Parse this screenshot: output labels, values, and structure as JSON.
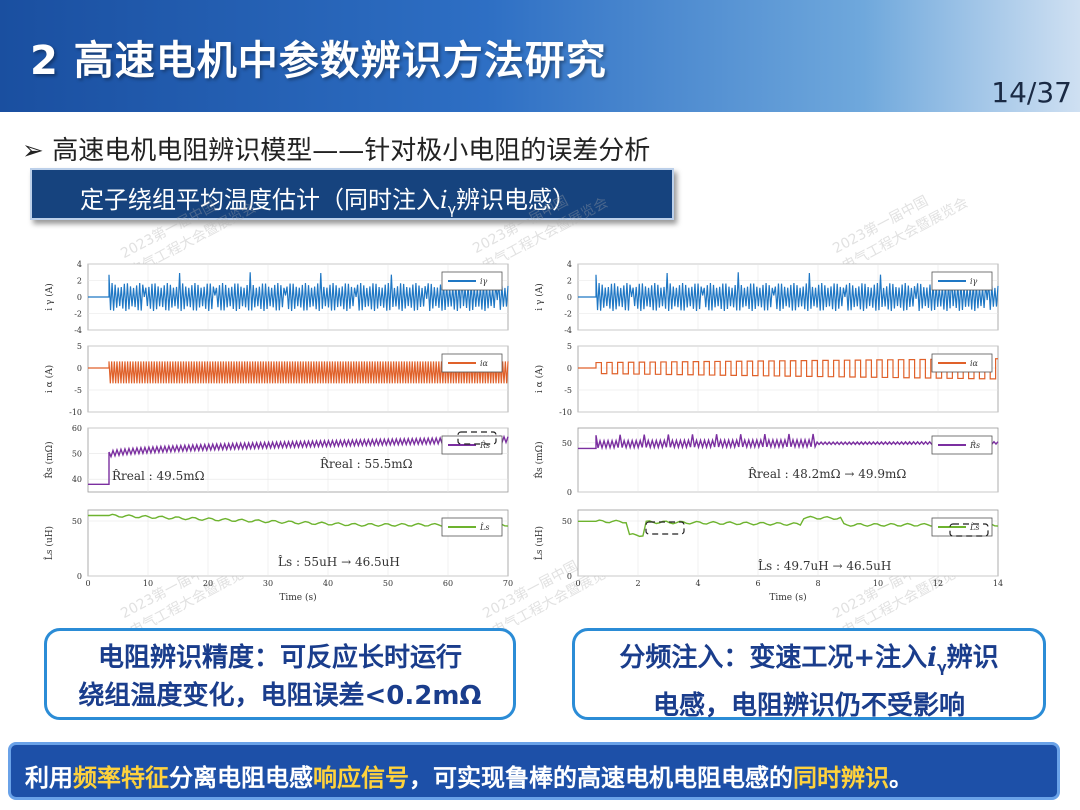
{
  "header": {
    "title": "2 高速电机中参数辨识方法研究",
    "page": "14/37"
  },
  "bullet": {
    "arrow": "➢",
    "text": "高速电机电阻辨识模型——针对极小电阻的误差分析"
  },
  "subtitle": {
    "pre": "定子绕组平均温度估计（同时注入",
    "ivar": "i",
    "isub": "γ",
    "post": "辨识电感）"
  },
  "watermark": {
    "line1": "2023第一届中国",
    "line2": "电气工程大会暨展览会"
  },
  "left_box": {
    "line1": "电阻辨识精度：可反应长时运行",
    "line2": "绕组温度变化，电阻误差<0.2mΩ"
  },
  "right_box": {
    "line1_pre": "分频注入：变速工况+注入",
    "ivar": "i",
    "isub": "γ",
    "line1_post": "辨识",
    "line2": "电感，电阻辨识仍不受影响"
  },
  "bottom": {
    "p1": "利用",
    "h1": "频率特征",
    "p2": "分离电阻电感",
    "h2": "响应信号",
    "p3": "，可实现鲁棒的高速电机电阻电感的",
    "h3": "同时辨识",
    "p4": "。"
  },
  "chart_data": [
    {
      "type": "line",
      "xlabel": "Time (s)",
      "xticks": [
        "0",
        "10",
        "20",
        "30",
        "40",
        "50",
        "60",
        "70"
      ],
      "xlim": [
        0,
        70
      ],
      "colors": {
        "igamma": "#1f77c4",
        "ialpha": "#e0612a",
        "rs": "#7b2fa0",
        "ls": "#6db32e"
      },
      "subplots": [
        {
          "ylabel": "i γ (A)",
          "yticks": [
            "4",
            "2",
            "0",
            "-2",
            "-4"
          ],
          "legend": "iγ",
          "ylim": [
            -4,
            4
          ]
        },
        {
          "ylabel": "i α (A)",
          "yticks": [
            "5",
            "0",
            "-5",
            "-10"
          ],
          "legend": "iα",
          "ylim": [
            -10,
            5
          ]
        },
        {
          "ylabel": "R̂s (mΩ)",
          "yticks": [
            "60",
            "50",
            "40"
          ],
          "legend": "R̂s",
          "ylim": [
            35,
            60
          ],
          "annotations": [
            "R̂real : 49.5mΩ",
            "R̂real : 55.5mΩ"
          ],
          "start": 49.5,
          "end": 55.5
        },
        {
          "ylabel": "L̂s (uH)",
          "yticks": [
            "50",
            "0"
          ],
          "legend": "L̂s",
          "ylim": [
            0,
            60
          ],
          "annotations": [
            "L̂s : 55uH → 46.5uH"
          ],
          "start": 55,
          "end": 46.5
        }
      ]
    },
    {
      "type": "line",
      "xlabel": "Time (s)",
      "xticks": [
        "0",
        "2",
        "4",
        "6",
        "8",
        "10",
        "12",
        "14"
      ],
      "xlim": [
        0,
        14
      ],
      "colors": {
        "igamma": "#1f77c4",
        "ialpha": "#e0612a",
        "rs": "#7b2fa0",
        "ls": "#6db32e"
      },
      "subplots": [
        {
          "ylabel": "i γ (A)",
          "yticks": [
            "4",
            "2",
            "0",
            "-2",
            "-4"
          ],
          "legend": "iγ",
          "ylim": [
            -4,
            4
          ]
        },
        {
          "ylabel": "i α (A)",
          "yticks": [
            "5",
            "0",
            "-5",
            "-10"
          ],
          "legend": "iα",
          "ylim": [
            -10,
            5
          ]
        },
        {
          "ylabel": "R̂s (mΩ)",
          "yticks": [
            "50",
            "0"
          ],
          "legend": "R̂s",
          "ylim": [
            0,
            65
          ],
          "annotations": [
            "R̂real : 48.2mΩ → 49.9mΩ"
          ],
          "start": 48.2,
          "end": 49.9
        },
        {
          "ylabel": "L̂s (uH)",
          "yticks": [
            "50",
            "0"
          ],
          "legend": "L̂s",
          "ylim": [
            0,
            60
          ],
          "annotations": [
            "L̂s : 49.7uH → 46.5uH"
          ],
          "start": 49.7,
          "end": 46.5
        }
      ]
    }
  ]
}
